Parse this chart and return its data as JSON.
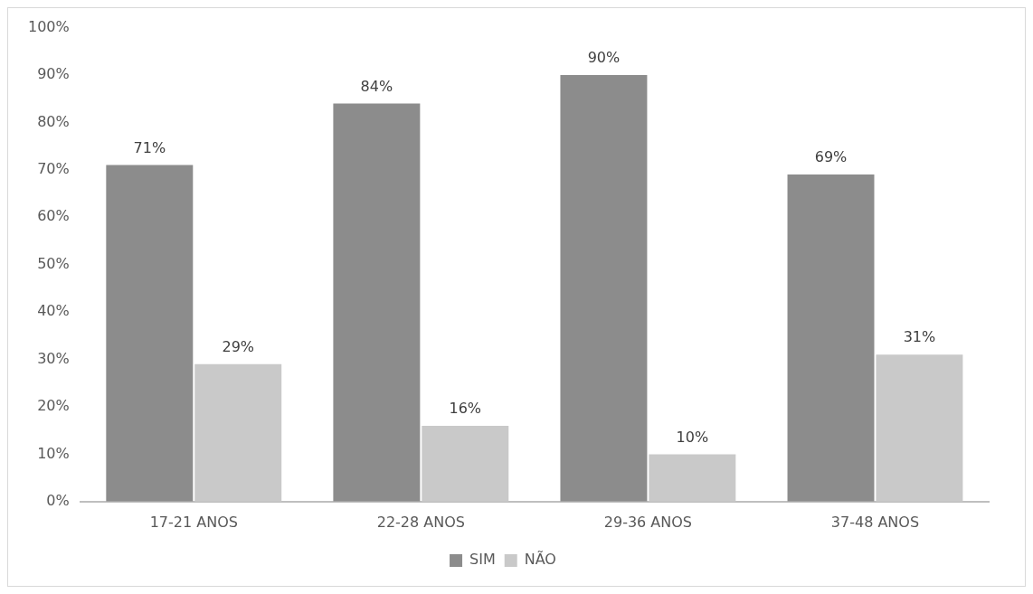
{
  "chart_data": {
    "type": "bar",
    "categories": [
      "17-21 ANOS",
      "22-28 ANOS",
      "29-36 ANOS",
      "37-48 ANOS"
    ],
    "series": [
      {
        "name": "SIM",
        "color": "#8c8c8c",
        "values": [
          71,
          84,
          90,
          69
        ],
        "value_labels": [
          "71%",
          "84%",
          "90%",
          "69%"
        ]
      },
      {
        "name": "NÃO",
        "color": "#c9c9c9",
        "values": [
          29,
          16,
          10,
          31
        ],
        "value_labels": [
          "29%",
          "16%",
          "10%",
          "31%"
        ]
      }
    ],
    "ylim": [
      0,
      100
    ],
    "yticks": [
      {
        "value": 0,
        "label": "0%"
      },
      {
        "value": 10,
        "label": "10%"
      },
      {
        "value": 20,
        "label": "20%"
      },
      {
        "value": 30,
        "label": "30%"
      },
      {
        "value": 40,
        "label": "40%"
      },
      {
        "value": 50,
        "label": "50%"
      },
      {
        "value": 60,
        "label": "60%"
      },
      {
        "value": 70,
        "label": "70%"
      },
      {
        "value": 80,
        "label": "80%"
      },
      {
        "value": 90,
        "label": "90%"
      },
      {
        "value": 100,
        "label": "100%"
      }
    ],
    "grid": false,
    "legend": "bottom"
  }
}
